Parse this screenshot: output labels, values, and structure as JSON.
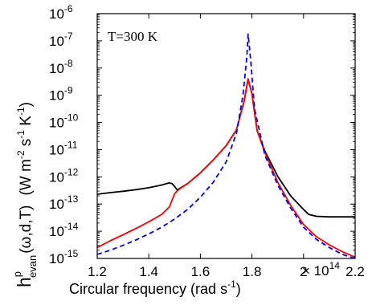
{
  "chart_data": {
    "type": "line",
    "xlabel": "Circular frequency (rad s",
    "xlabel_sup": "-1",
    "xlabel_end": ")",
    "ylabel": {
      "symbol": "h",
      "sup": "p",
      "sub": "evan",
      "args": "(ω,d,T)",
      "unit_open": "(W m",
      "unit_m_exp": "-2",
      "unit_s": " s",
      "unit_s_exp": "-1",
      "unit_k": " K",
      "unit_k_exp": "-1",
      "unit_close": ")"
    },
    "annotation": "T=300 K",
    "x_multiplier": "× 10",
    "x_multiplier_exp": "14",
    "xlim": [
      1.2,
      2.2
    ],
    "ylim_log10": [
      -15,
      -6
    ],
    "y_scale": "log",
    "grid": false,
    "legend": "none",
    "x_ticks": [
      {
        "value": 1.2,
        "label": "1.2"
      },
      {
        "value": 1.4,
        "label": "1.4"
      },
      {
        "value": 1.6,
        "label": "1.6"
      },
      {
        "value": 1.8,
        "label": "1.8"
      },
      {
        "value": 2.0,
        "label": "2"
      },
      {
        "value": 2.2,
        "label": "2.2"
      }
    ],
    "y_ticks": [
      {
        "exp": -15,
        "base": "10",
        "power": "-15"
      },
      {
        "exp": -14,
        "base": "10",
        "power": "-14"
      },
      {
        "exp": -13,
        "base": "10",
        "power": "-13"
      },
      {
        "exp": -12,
        "base": "10",
        "power": "-12"
      },
      {
        "exp": -11,
        "base": "10",
        "power": "-11"
      },
      {
        "exp": -10,
        "base": "10",
        "power": "-10"
      },
      {
        "exp": -9,
        "base": "10",
        "power": "-9"
      },
      {
        "exp": -8,
        "base": "10",
        "power": "-8"
      },
      {
        "exp": -7,
        "base": "10",
        "power": "-7"
      },
      {
        "exp": -6,
        "base": "10",
        "power": "-6"
      }
    ],
    "series": [
      {
        "color": "#000000",
        "dash": "solid",
        "points": [
          [
            1.2,
            -12.64
          ],
          [
            1.25,
            -12.58
          ],
          [
            1.3,
            -12.53
          ],
          [
            1.35,
            -12.47
          ],
          [
            1.4,
            -12.4
          ],
          [
            1.45,
            -12.3
          ],
          [
            1.48,
            -12.22
          ],
          [
            1.49,
            -12.25
          ],
          [
            1.5,
            -12.35
          ],
          [
            1.51,
            -12.48
          ],
          [
            1.52,
            -12.42
          ],
          [
            1.55,
            -12.25
          ],
          [
            1.6,
            -11.85
          ],
          [
            1.65,
            -11.38
          ],
          [
            1.7,
            -10.85
          ],
          [
            1.74,
            -10.27
          ],
          [
            1.77,
            -9.2
          ],
          [
            1.785,
            -8.4
          ],
          [
            1.8,
            -8.95
          ],
          [
            1.82,
            -10.3
          ],
          [
            1.85,
            -11.05
          ],
          [
            1.9,
            -11.98
          ],
          [
            1.95,
            -12.7
          ],
          [
            2.0,
            -13.2
          ],
          [
            2.02,
            -13.38
          ],
          [
            2.05,
            -13.45
          ],
          [
            2.1,
            -13.47
          ],
          [
            2.2,
            -13.47
          ]
        ]
      },
      {
        "color": "#ff0000",
        "dash": "solid",
        "points": [
          [
            1.2,
            -14.6
          ],
          [
            1.25,
            -14.35
          ],
          [
            1.3,
            -14.13
          ],
          [
            1.35,
            -13.9
          ],
          [
            1.4,
            -13.65
          ],
          [
            1.45,
            -13.38
          ],
          [
            1.48,
            -13.1
          ],
          [
            1.5,
            -12.62
          ],
          [
            1.51,
            -12.52
          ],
          [
            1.52,
            -12.44
          ],
          [
            1.55,
            -12.25
          ],
          [
            1.6,
            -11.85
          ],
          [
            1.65,
            -11.38
          ],
          [
            1.7,
            -10.85
          ],
          [
            1.74,
            -10.27
          ],
          [
            1.77,
            -9.2
          ],
          [
            1.785,
            -8.4
          ],
          [
            1.8,
            -8.95
          ],
          [
            1.82,
            -10.3
          ],
          [
            1.85,
            -11.1
          ],
          [
            1.9,
            -12.2
          ],
          [
            1.95,
            -13.05
          ],
          [
            2.0,
            -13.75
          ],
          [
            2.05,
            -14.2
          ],
          [
            2.1,
            -14.5
          ],
          [
            2.15,
            -14.75
          ],
          [
            2.2,
            -14.95
          ]
        ]
      },
      {
        "color": "#0000ff",
        "dash": "dashed",
        "points": [
          [
            1.2,
            -14.85
          ],
          [
            1.25,
            -14.7
          ],
          [
            1.3,
            -14.52
          ],
          [
            1.35,
            -14.32
          ],
          [
            1.4,
            -14.1
          ],
          [
            1.45,
            -13.85
          ],
          [
            1.5,
            -13.55
          ],
          [
            1.55,
            -13.2
          ],
          [
            1.6,
            -12.75
          ],
          [
            1.65,
            -12.2
          ],
          [
            1.7,
            -11.45
          ],
          [
            1.74,
            -10.4
          ],
          [
            1.765,
            -9.0
          ],
          [
            1.78,
            -7.6
          ],
          [
            1.785,
            -6.75
          ],
          [
            1.795,
            -7.7
          ],
          [
            1.81,
            -9.5
          ],
          [
            1.85,
            -11.2
          ],
          [
            1.9,
            -12.3
          ],
          [
            1.95,
            -13.15
          ],
          [
            2.0,
            -13.85
          ],
          [
            2.05,
            -14.3
          ],
          [
            2.1,
            -14.6
          ],
          [
            2.15,
            -14.85
          ],
          [
            2.2,
            -15.0
          ]
        ]
      }
    ]
  }
}
